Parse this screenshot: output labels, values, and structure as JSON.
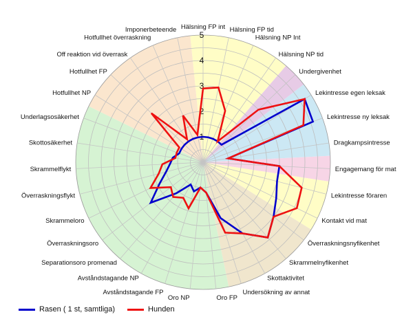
{
  "chart_data": {
    "type": "radar",
    "rlim": [
      0,
      5
    ],
    "ticks": [
      1,
      2,
      3,
      4,
      5
    ],
    "categories": [
      "Hälsning FP int",
      "Hälsning FP tid",
      "Hälsning NP Int",
      "Hälsning NP tid",
      "Undergivenhet",
      "Lekintresse egen leksak",
      "Lekintresse ny leksak",
      "Dragkampsintresse",
      "Engagemang för mat",
      "Lekintresse föraren",
      "Kontakt vid mat",
      "Överraskningsnyfikenhet",
      "Skrammelnyfikenhet",
      "Skottaktivitet",
      "Undersökning av annat",
      "Oro FP",
      "Oro NP",
      "Avståndstagande FP",
      "Avståndstagande NP",
      "Separationsoro promenad",
      "Överraskningsoro",
      "Skrammeloro",
      "Överraskningsflykt",
      "Skrammelflykt",
      "Skottosäkerhet",
      "Underlagsosäkerhet",
      "Hotfullhet NP",
      "Hotfullhet FP",
      "Off reaktion vid överrask",
      "Hotfullhet överraskning",
      "Imponerbeteende"
    ],
    "series": [
      {
        "name": "Rasen ( 1 st, samtliga)",
        "color": "#0000cc",
        "values": [
          1.0,
          1.0,
          1.0,
          1.0,
          1.0,
          4.7,
          4.6,
          1.0,
          3.0,
          3.0,
          3.2,
          3.5,
          3.9,
          3.2,
          2.3,
          1.2,
          1.0,
          1.2,
          1.0,
          1.6,
          2.6,
          1.9,
          1.5,
          1.3,
          1.2,
          1.0,
          1.0,
          1.0,
          1.0,
          1.0,
          1.0
        ]
      },
      {
        "name": "Hunden",
        "color": "#ee1111",
        "values": [
          2.9,
          3.0,
          2.2,
          1.0,
          3.0,
          4.7,
          4.2,
          1.0,
          3.0,
          4.0,
          4.1,
          3.5,
          3.9,
          3.2,
          2.9,
          1.2,
          1.0,
          1.9,
          1.6,
          1.8,
          1.6,
          2.3,
          1.8,
          1.6,
          1.1,
          1.1,
          1.1,
          2.8,
          1.1,
          2.0,
          1.1
        ]
      }
    ],
    "sectors": [
      {
        "from": 0,
        "to": 4,
        "color": "#fffdc6"
      },
      {
        "from": 4,
        "to": 5,
        "color": "#e7cbe6"
      },
      {
        "from": 5,
        "to": 8,
        "color": "#cce8f4"
      },
      {
        "from": 8,
        "to": 9,
        "color": "#f7d5e6"
      },
      {
        "from": 9,
        "to": 11,
        "color": "#fffdc6"
      },
      {
        "from": 11,
        "to": 15,
        "color": "#f0e6cd"
      },
      {
        "from": 15,
        "to": 26,
        "color": "#d6f3d3"
      },
      {
        "from": 26,
        "to": 31,
        "color": "#fbe6ce"
      }
    ],
    "legend_position": "bottom-left"
  }
}
